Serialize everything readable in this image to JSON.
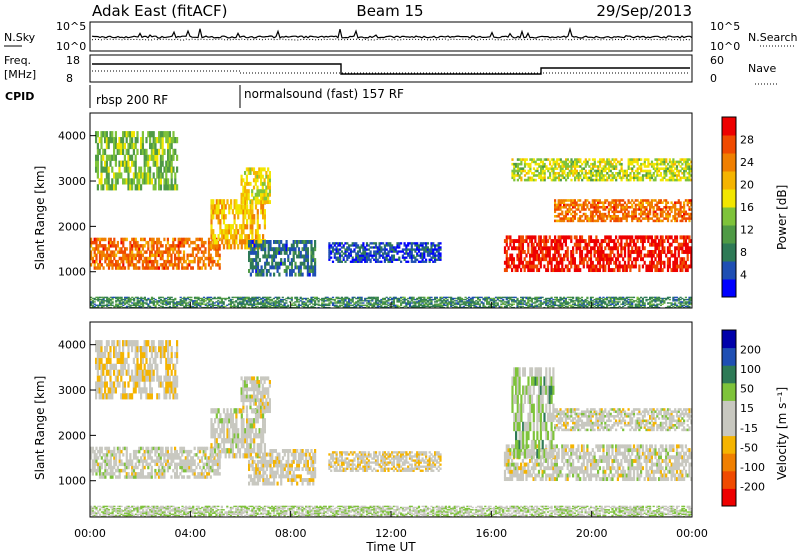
{
  "header": {
    "site": "Adak East (fitACF)",
    "beam": "Beam 15",
    "date": "29/Sep/2013"
  },
  "noise_panel": {
    "left_label": "N.Sky",
    "right_label": "N.Search",
    "left_ticks": [
      "10^5",
      "10^0"
    ],
    "right_ticks": [
      "10^5",
      "10^0"
    ]
  },
  "freq_panel": {
    "left_label_1": "Freq.",
    "left_label_2": "[MHz]",
    "left_ticks": [
      "18",
      "8"
    ],
    "right_label": "Nave",
    "right_ticks": [
      "60",
      "0"
    ]
  },
  "cpid": {
    "label": "CPID",
    "segments": [
      {
        "start_hour": 0,
        "end_hour": 6,
        "name": "rbsp 200 RF"
      },
      {
        "start_hour": 6,
        "end_hour": 24,
        "name": "normalsound (fast) 157 RF"
      }
    ]
  },
  "time_axis": {
    "label": "Time UT",
    "ticks": [
      "00:00",
      "04:00",
      "08:00",
      "12:00",
      "16:00",
      "20:00",
      "00:00"
    ]
  },
  "colors": {
    "power_scale": [
      "#0000ff",
      "#1f4fb3",
      "#2e7a56",
      "#4f9a45",
      "#7ec33a",
      "#f2e600",
      "#f5b400",
      "#f07f00",
      "#f04a00",
      "#ee0000"
    ],
    "velocity_scale": [
      "#ee0000",
      "#f04a00",
      "#f07f00",
      "#f5b400",
      "#c8c8c0",
      "#c8c8c0",
      "#7ec33a",
      "#2e7a56",
      "#1f4fb3",
      "#0000aa"
    ]
  },
  "chart_data": [
    {
      "type": "heatmap",
      "name": "power",
      "ylabel": "Slant Range [km]",
      "yticks": [
        "4000",
        "3000",
        "2000",
        "1000"
      ],
      "ylim": [
        200,
        4500
      ],
      "xlim": [
        0,
        24
      ],
      "colorbar_label": "Power [dB]",
      "colorbar_ticks": [
        "28",
        "24",
        "20",
        "16",
        "12",
        "8",
        "4"
      ],
      "echo_bands": [
        {
          "t0": 0.0,
          "t1": 5.2,
          "r0": 1050,
          "r1": 1750,
          "value": 24
        },
        {
          "t0": 4.8,
          "t1": 7.0,
          "r0": 1500,
          "r1": 2600,
          "value": 20
        },
        {
          "t0": 6.0,
          "t1": 7.2,
          "r0": 2500,
          "r1": 3300,
          "value": 18
        },
        {
          "t0": 0.2,
          "t1": 3.5,
          "r0": 2800,
          "r1": 4100,
          "value": 14
        },
        {
          "t0": 6.3,
          "t1": 9.0,
          "r0": 900,
          "r1": 1700,
          "value": 8
        },
        {
          "t0": 9.5,
          "t1": 14.0,
          "r0": 1200,
          "r1": 1650,
          "value": 6
        },
        {
          "t0": 16.5,
          "t1": 24.0,
          "r0": 1000,
          "r1": 1800,
          "value": 28
        },
        {
          "t0": 18.5,
          "t1": 24.0,
          "r0": 2100,
          "r1": 2600,
          "value": 24
        },
        {
          "t0": 16.8,
          "t1": 24.0,
          "r0": 3000,
          "r1": 3500,
          "value": 16
        },
        {
          "t0": 0.0,
          "t1": 24.0,
          "r0": 200,
          "r1": 450,
          "value": 10
        }
      ]
    },
    {
      "type": "heatmap",
      "name": "velocity",
      "ylabel": "Slant Range [km]",
      "yticks": [
        "4000",
        "3000",
        "2000",
        "1000"
      ],
      "ylim": [
        200,
        4500
      ],
      "xlim": [
        0,
        24
      ],
      "colorbar_label": "Velocity [m s⁻¹]",
      "colorbar_ticks": [
        "200",
        "100",
        "50",
        "15",
        "-15",
        "-50",
        "-100",
        "-200"
      ],
      "echo_bands": [
        {
          "t0": 0.0,
          "t1": 5.2,
          "r0": 1050,
          "r1": 1750,
          "value": 0
        },
        {
          "t0": 4.8,
          "t1": 7.0,
          "r0": 1500,
          "r1": 2600,
          "value": 0
        },
        {
          "t0": 6.0,
          "t1": 7.2,
          "r0": 2500,
          "r1": 3300,
          "value": 0
        },
        {
          "t0": 0.2,
          "t1": 3.5,
          "r0": 2800,
          "r1": 4100,
          "value": -30
        },
        {
          "t0": 6.3,
          "t1": 9.0,
          "r0": 900,
          "r1": 1700,
          "value": -10
        },
        {
          "t0": 9.5,
          "t1": 14.0,
          "r0": 1200,
          "r1": 1650,
          "value": -20
        },
        {
          "t0": 16.5,
          "t1": 24.0,
          "r0": 1000,
          "r1": 1800,
          "value": 0
        },
        {
          "t0": 18.5,
          "t1": 24.0,
          "r0": 2100,
          "r1": 2600,
          "value": 0
        },
        {
          "t0": 16.8,
          "t1": 18.5,
          "r0": 1500,
          "r1": 3500,
          "value": 40
        },
        {
          "t0": 0.0,
          "t1": 24.0,
          "r0": 200,
          "r1": 450,
          "value": 30
        }
      ]
    }
  ]
}
